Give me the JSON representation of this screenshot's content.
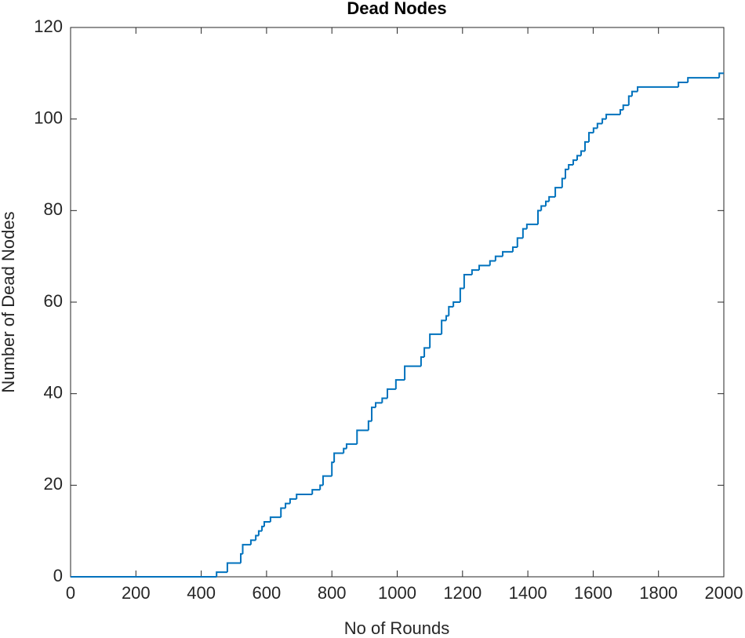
{
  "chart_data": {
    "type": "line",
    "step": "post",
    "title": "Dead Nodes",
    "x_label": "No of Rounds",
    "y_label": "Number of Dead Nodes",
    "x": [
      0,
      447,
      480,
      521,
      527,
      552,
      567,
      576,
      586,
      593,
      612,
      644,
      658,
      672,
      692,
      740,
      764,
      773,
      800,
      807,
      836,
      845,
      877,
      912,
      922,
      934,
      954,
      970,
      996,
      1023,
      1073,
      1083,
      1100,
      1136,
      1150,
      1158,
      1172,
      1193,
      1205,
      1229,
      1251,
      1284,
      1301,
      1323,
      1354,
      1368,
      1385,
      1397,
      1431,
      1441,
      1455,
      1465,
      1484,
      1505,
      1515,
      1525,
      1539,
      1551,
      1563,
      1575,
      1587,
      1601,
      1613,
      1628,
      1640,
      1683,
      1692,
      1709,
      1719,
      1736,
      1861,
      1890,
      1986,
      2000
    ],
    "series": [
      {
        "name": "Dead Nodes",
        "color": "#0072bd",
        "values": [
          0,
          1,
          3,
          5,
          7,
          8,
          9,
          10,
          11,
          12,
          13,
          15,
          16,
          17,
          18,
          19,
          20,
          22,
          25,
          27,
          28,
          29,
          32,
          34,
          37,
          38,
          39,
          41,
          43,
          46,
          48,
          50,
          53,
          56,
          57,
          59,
          60,
          63,
          66,
          67,
          68,
          69,
          70,
          71,
          72,
          74,
          76,
          77,
          80,
          81,
          82,
          83,
          85,
          87,
          89,
          90,
          91,
          92,
          93,
          95,
          97,
          98,
          99,
          100,
          101,
          102,
          103,
          105,
          106,
          107,
          108,
          109,
          110,
          110
        ]
      }
    ],
    "xlim": [
      0,
      2000
    ],
    "xticks": [
      0,
      200,
      400,
      600,
      800,
      1000,
      1200,
      1400,
      1600,
      1800,
      2000
    ],
    "ylim": [
      0,
      120
    ],
    "yticks": [
      0,
      20,
      40,
      60,
      80,
      100,
      120
    ],
    "grid": false
  }
}
